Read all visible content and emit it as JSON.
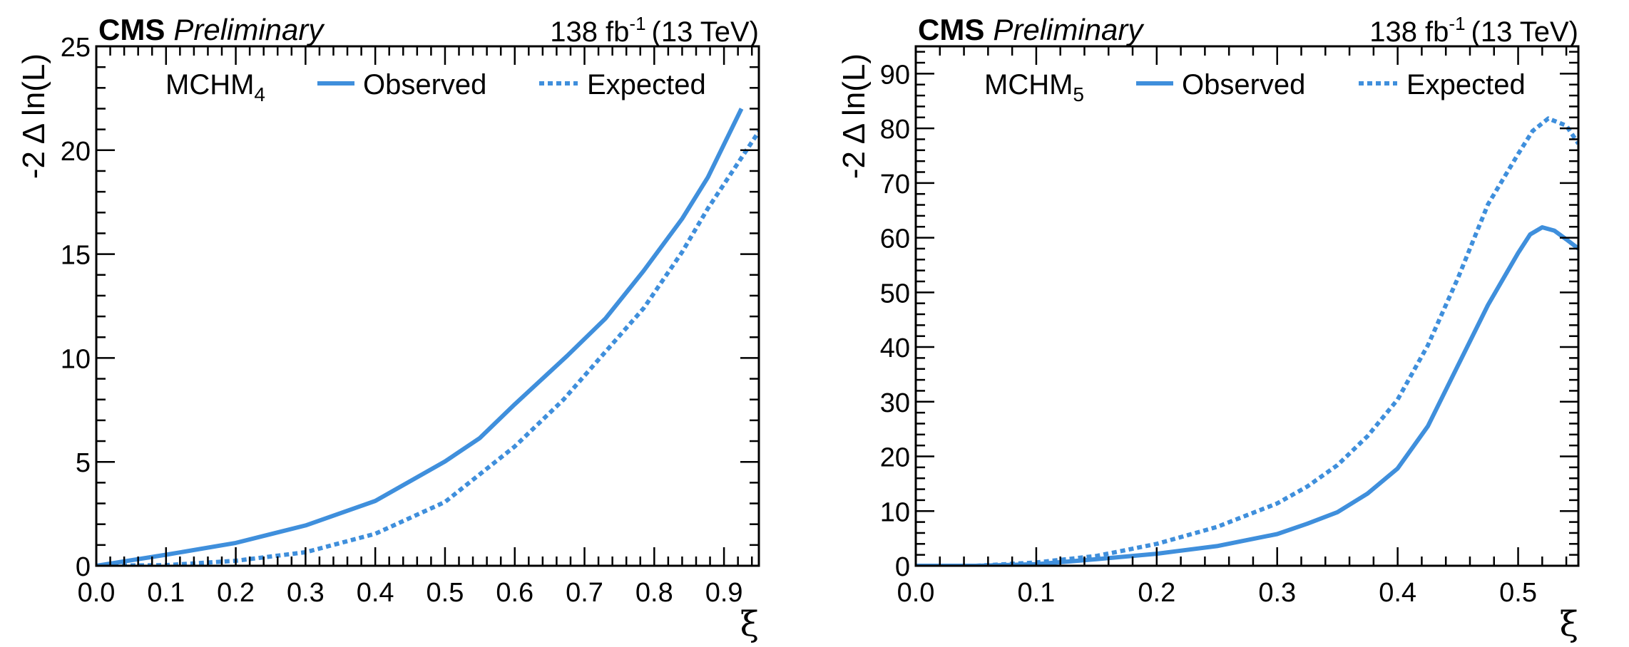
{
  "header": {
    "experiment": "CMS",
    "status": "Preliminary",
    "lumi": "138 fb",
    "lumi_sup": "-1",
    "energy": "(13 TeV)"
  },
  "colors": {
    "curve": "#3f8fdc",
    "axis": "#000000"
  },
  "chart_data": [
    {
      "type": "line",
      "title": "CMS Preliminary",
      "xlabel": "ξ",
      "ylabel": "-2 Δ ln(L)",
      "xlim": [
        0,
        0.95
      ],
      "ylim": [
        0,
        25
      ],
      "x_major_step": 0.1,
      "x_minor_step": 0.02,
      "y_major_step": 5,
      "y_minor_step": 1,
      "x_ticks": [
        "0.0",
        "0.1",
        "0.2",
        "0.3",
        "0.4",
        "0.5",
        "0.6",
        "0.7",
        "0.8",
        "0.9"
      ],
      "y_ticks": [
        "0",
        "5",
        "10",
        "15",
        "20",
        "25"
      ],
      "grid": false,
      "legend": {
        "model": "MCHM",
        "model_sub": "4",
        "observed": "Observed",
        "expected": "Expected",
        "placement": "top"
      },
      "series": [
        {
          "name": "Observed",
          "style": "solid",
          "x": [
            0,
            0.1,
            0.2,
            0.3,
            0.4,
            0.5,
            0.55,
            0.6,
            0.675,
            0.73,
            0.785,
            0.84,
            0.877,
            0.925
          ],
          "y": [
            0,
            0.53,
            1.1,
            1.94,
            3.12,
            5.02,
            6.15,
            7.77,
            10.1,
            11.9,
            14.2,
            16.7,
            18.7,
            22.0
          ]
        },
        {
          "name": "Expected",
          "style": "dotted",
          "x": [
            0,
            0.1,
            0.2,
            0.3,
            0.4,
            0.5,
            0.6,
            0.67,
            0.73,
            0.785,
            0.84,
            0.877,
            0.95
          ],
          "y": [
            0,
            0.03,
            0.24,
            0.65,
            1.54,
            3.07,
            5.74,
            8.0,
            10.3,
            12.4,
            15.1,
            17.2,
            20.9
          ]
        }
      ]
    },
    {
      "type": "line",
      "title": "CMS Preliminary",
      "xlabel": "ξ",
      "ylabel": "-2 Δ ln(L)",
      "xlim": [
        0,
        0.55
      ],
      "ylim": [
        0,
        95
      ],
      "x_major_step": 0.1,
      "x_minor_step": 0.02,
      "y_major_step": 10,
      "y_minor_step": 2,
      "x_ticks": [
        "0.0",
        "0.1",
        "0.2",
        "0.3",
        "0.4",
        "0.5"
      ],
      "y_ticks": [
        "0",
        "10",
        "20",
        "30",
        "40",
        "50",
        "60",
        "70",
        "80",
        "90"
      ],
      "grid": false,
      "legend": {
        "model": "MCHM",
        "model_sub": "5",
        "observed": "Observed",
        "expected": "Expected",
        "placement": "top"
      },
      "series": [
        {
          "name": "Observed",
          "style": "solid",
          "x": [
            0,
            0.05,
            0.1,
            0.15,
            0.2,
            0.25,
            0.3,
            0.325,
            0.35,
            0.375,
            0.4,
            0.425,
            0.45,
            0.475,
            0.5,
            0.51,
            0.52,
            0.53,
            0.54,
            0.55
          ],
          "y": [
            0,
            0,
            0.3,
            1.2,
            2.2,
            3.6,
            5.8,
            7.7,
            9.8,
            13.2,
            17.8,
            25.5,
            36.6,
            47.7,
            57.2,
            60.6,
            61.9,
            61.3,
            59.7,
            58.0
          ]
        },
        {
          "name": "Expected",
          "style": "dotted",
          "x": [
            0,
            0.05,
            0.1,
            0.15,
            0.2,
            0.25,
            0.3,
            0.325,
            0.35,
            0.375,
            0.4,
            0.425,
            0.45,
            0.475,
            0.5,
            0.512,
            0.525,
            0.54,
            0.55
          ],
          "y": [
            0,
            0,
            0.6,
            1.8,
            4.0,
            7.1,
            11.4,
            14.5,
            18.4,
            23.7,
            30.4,
            40.3,
            52.6,
            66.1,
            75.3,
            79.5,
            81.8,
            80.5,
            77.2
          ]
        }
      ]
    }
  ]
}
